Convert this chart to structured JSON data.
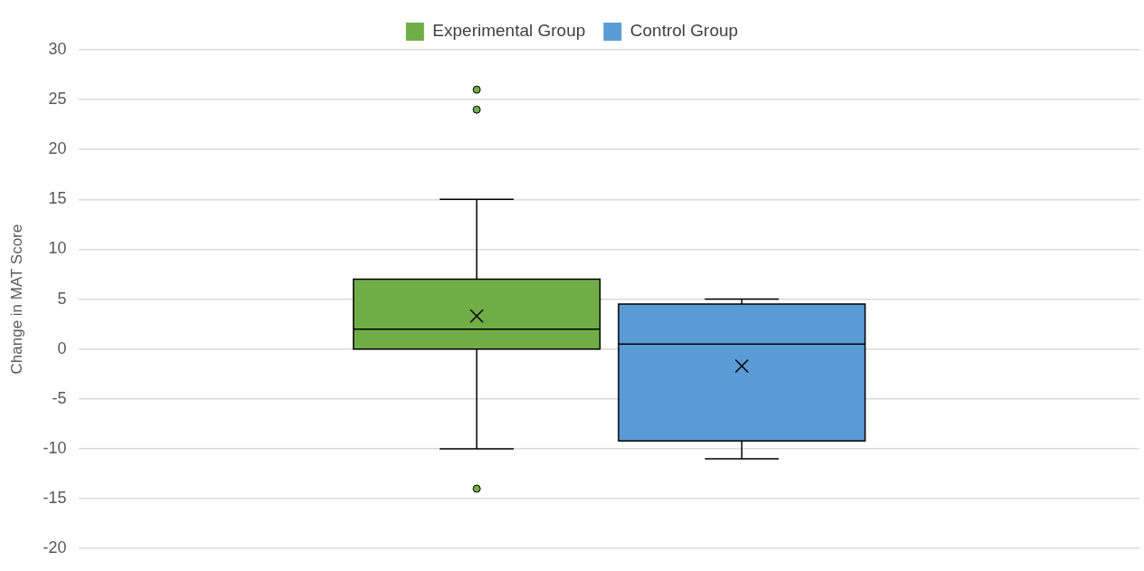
{
  "chart_data": {
    "type": "box",
    "ylabel": "Change in MAT Score",
    "categories": [
      null
    ],
    "series": [
      {
        "name": "Experimental Group",
        "color": "#70ad47",
        "boxes": [
          {
            "low": -10,
            "q1": 0,
            "median": 2,
            "q3": 7,
            "high": 15,
            "mean": 3.3,
            "outliers": [
              26,
              24,
              -14
            ]
          }
        ]
      },
      {
        "name": "Control Group",
        "color": "#5b9bd5",
        "boxes": [
          {
            "low": -11,
            "q1": -9.2,
            "median": 0.5,
            "q3": 4.5,
            "high": 5,
            "mean": -1.7
          }
        ]
      }
    ],
    "ylim": [
      -20,
      30
    ],
    "yticks": [
      -20,
      -15,
      -10,
      -5,
      0,
      5,
      10,
      15,
      20,
      25,
      30
    ],
    "grid": "y",
    "legend": "top",
    "tick_labels": "y"
  }
}
